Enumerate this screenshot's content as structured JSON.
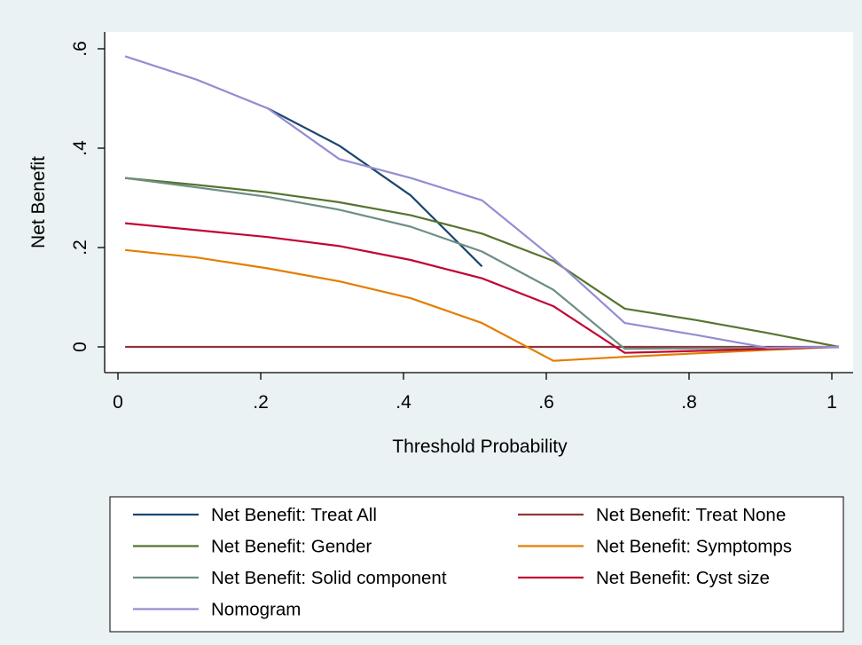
{
  "chart_data": {
    "type": "line",
    "title": "",
    "xlabel": "Threshold Probability",
    "ylabel": "Net Benefit",
    "xlim": [
      0,
      1
    ],
    "ylim": [
      -0.05,
      0.62
    ],
    "x_ticks": [
      0,
      0.2,
      0.4,
      0.6,
      0.8,
      1
    ],
    "x_tick_labels": [
      "0",
      ".2",
      ".4",
      ".6",
      ".8",
      "1"
    ],
    "y_ticks": [
      0,
      0.2,
      0.4,
      0.6
    ],
    "y_tick_labels": [
      "0",
      ".2",
      ".4",
      ".6"
    ],
    "grid": false,
    "legend_position": "bottom",
    "series": [
      {
        "name": "Net Benefit: Treat All",
        "color": "#1a476f",
        "x": [
          0.21,
          0.31,
          0.41,
          0.51
        ],
        "y": [
          0.48,
          0.405,
          0.305,
          0.162
        ]
      },
      {
        "name": "Net Benefit: Treat None",
        "color": "#90353b",
        "x": [
          0.01,
          1.01
        ],
        "y": [
          0,
          0
        ]
      },
      {
        "name": "Net Benefit: Gender",
        "color": "#55752f",
        "x": [
          0.01,
          0.11,
          0.21,
          0.31,
          0.41,
          0.51,
          0.61,
          0.71,
          0.81,
          0.91,
          1.01
        ],
        "y": [
          0.34,
          0.326,
          0.311,
          0.291,
          0.265,
          0.228,
          0.173,
          0.077,
          0.054,
          0.028,
          0
        ]
      },
      {
        "name": "Net Benefit: Symptomps",
        "color": "#e37e00",
        "x": [
          0.01,
          0.11,
          0.21,
          0.31,
          0.41,
          0.51,
          0.61,
          0.71,
          0.81,
          0.91,
          1.01
        ],
        "y": [
          0.195,
          0.18,
          0.158,
          0.132,
          0.098,
          0.048,
          -0.028,
          -0.02,
          -0.013,
          -0.006,
          0
        ]
      },
      {
        "name": "Net Benefit: Solid component",
        "color": "#6e8e84",
        "x": [
          0.01,
          0.11,
          0.21,
          0.31,
          0.41,
          0.51,
          0.61,
          0.71,
          0.81,
          0.91,
          1.01
        ],
        "y": [
          0.34,
          0.321,
          0.302,
          0.276,
          0.242,
          0.192,
          0.115,
          -0.004,
          -0.003,
          -0.002,
          0
        ]
      },
      {
        "name": "Net Benefit: Cyst size",
        "color": "#c10534",
        "x": [
          0.01,
          0.11,
          0.21,
          0.31,
          0.41,
          0.51,
          0.61,
          0.71,
          0.81,
          0.91,
          1.01
        ],
        "y": [
          0.249,
          0.235,
          0.221,
          0.203,
          0.175,
          0.138,
          0.082,
          -0.012,
          -0.008,
          -0.004,
          0
        ]
      },
      {
        "name": "Nomogram",
        "color": "#938dd2",
        "x": [
          0.01,
          0.11,
          0.21,
          0.31,
          0.41,
          0.51,
          0.61,
          0.71,
          0.81,
          0.91,
          1.01
        ],
        "y": [
          0.585,
          0.538,
          0.48,
          0.378,
          0.34,
          0.295,
          0.178,
          0.048,
          0.024,
          -0.002,
          0
        ]
      }
    ]
  }
}
